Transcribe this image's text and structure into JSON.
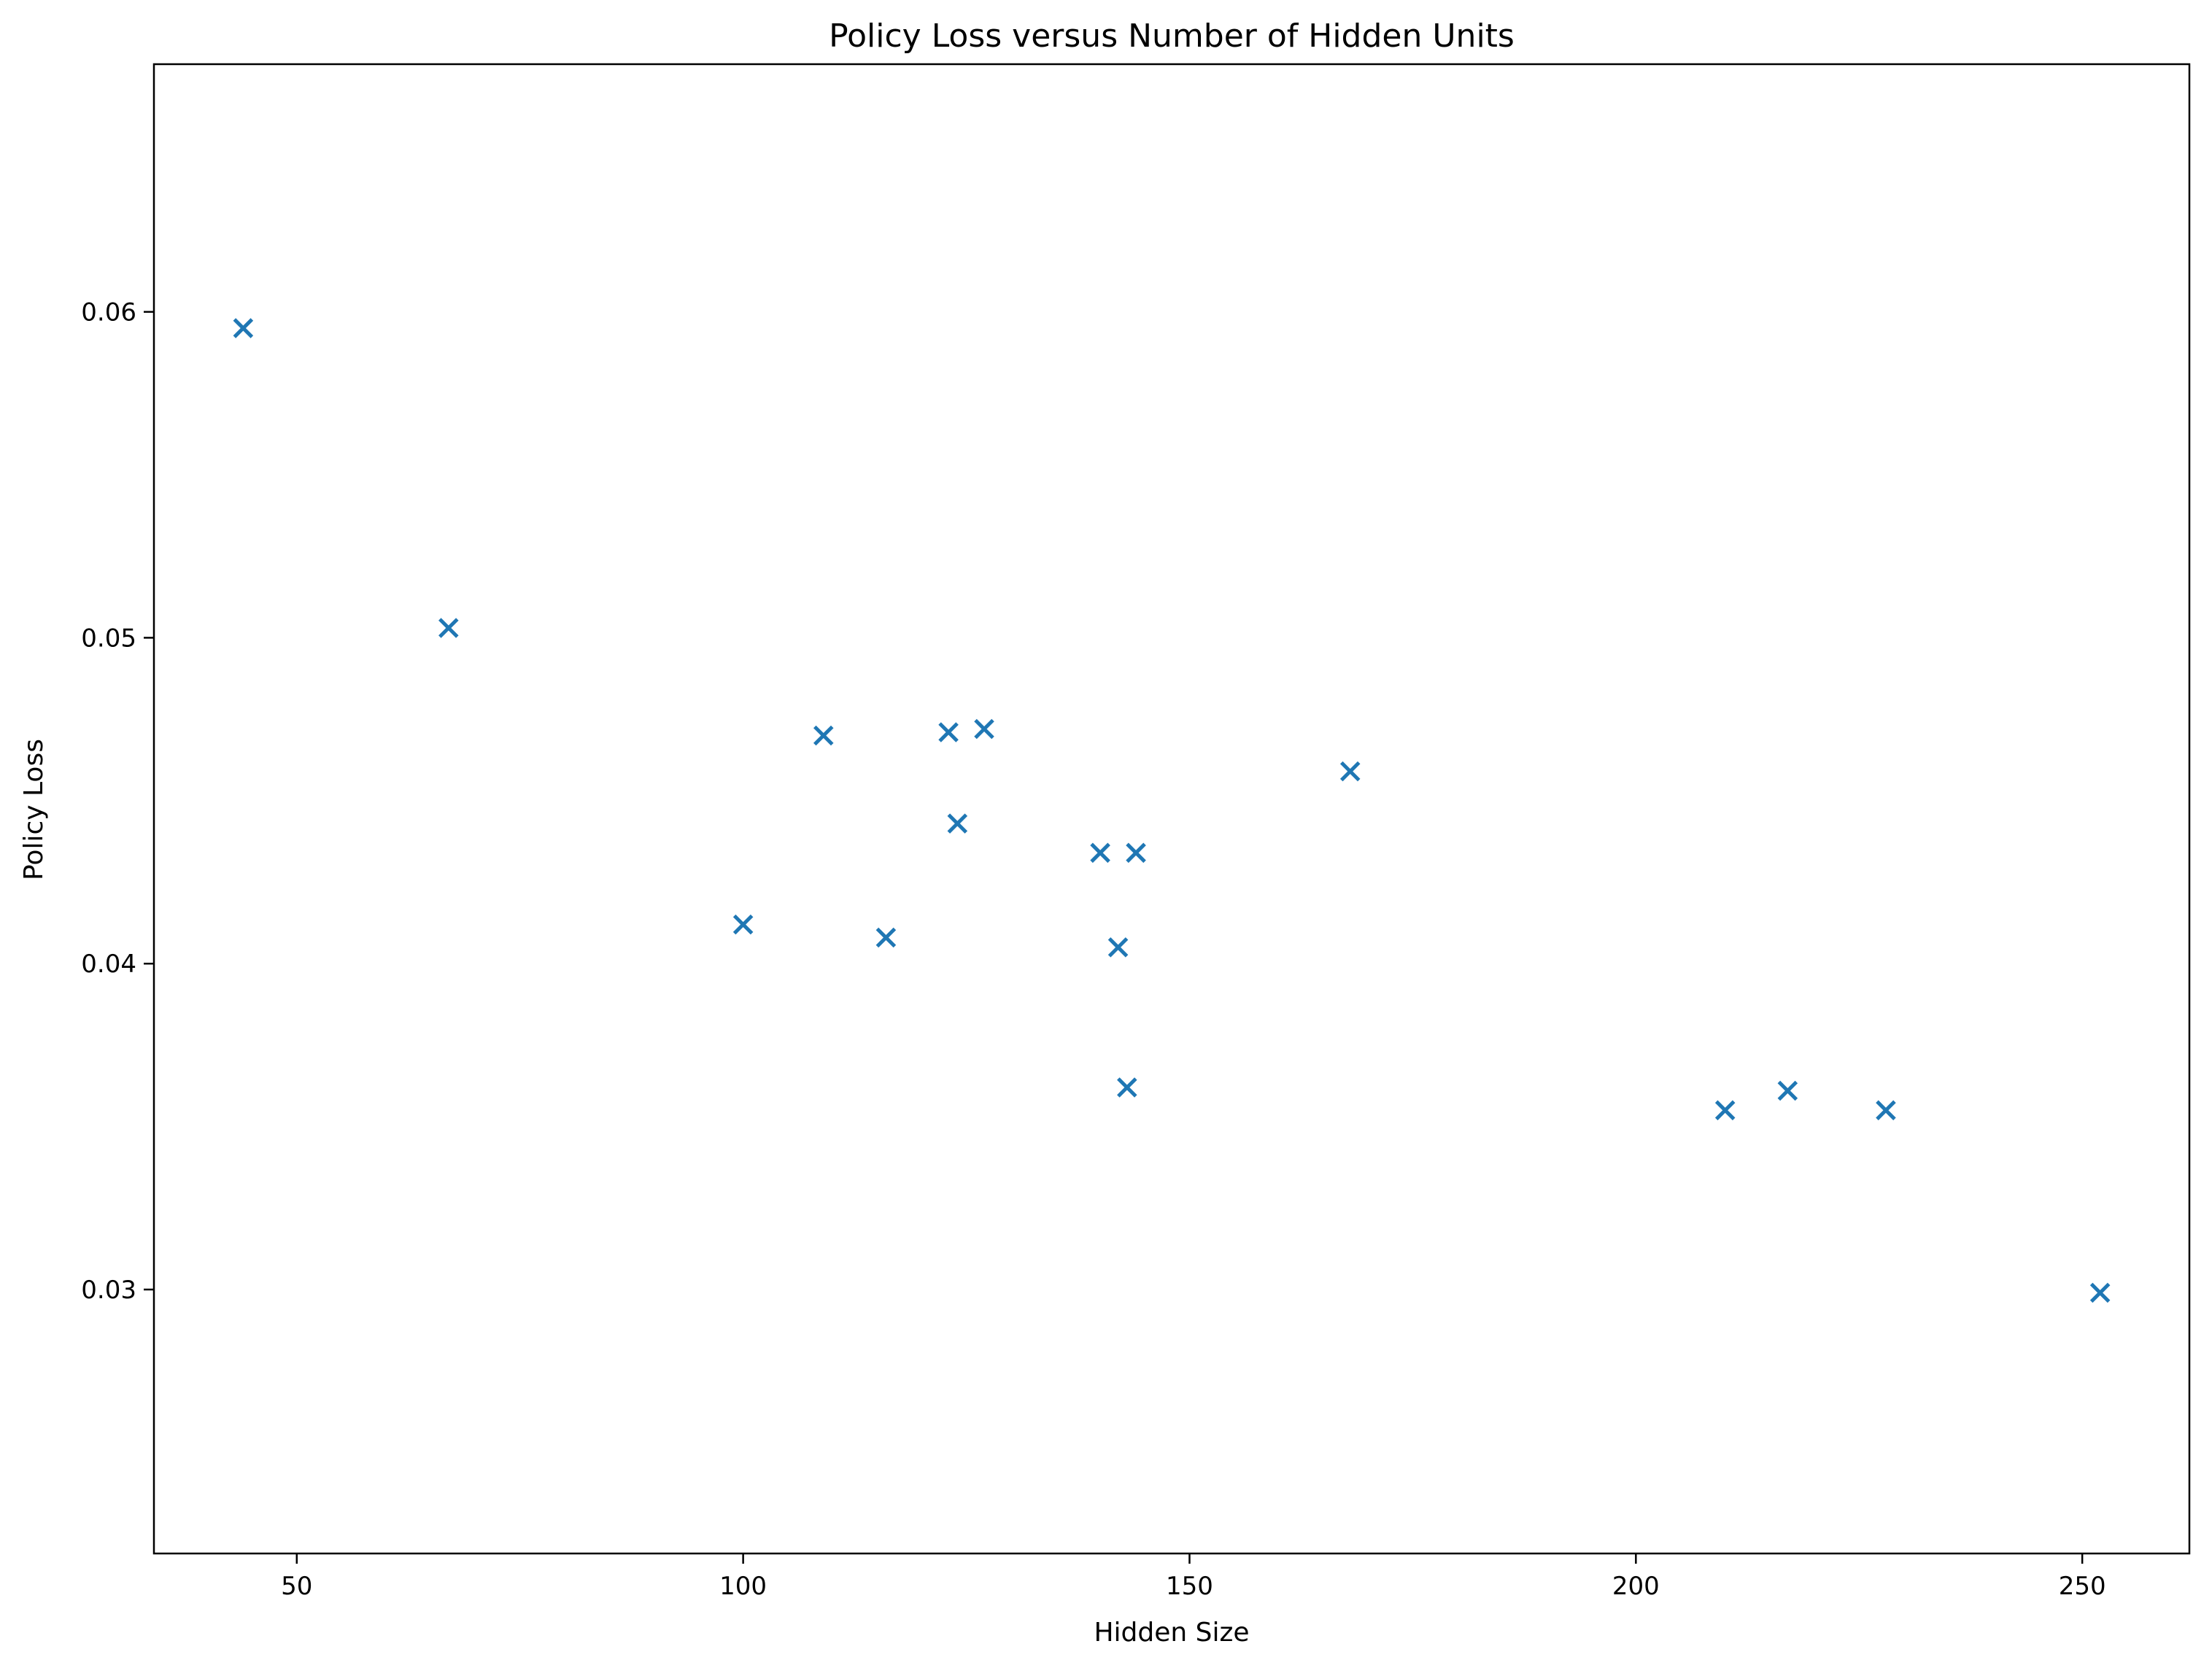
{
  "chart_data": {
    "type": "scatter",
    "title": "Policy Loss versus Number of Hidden Units",
    "xlabel": "Hidden Size",
    "ylabel": "Policy Loss",
    "xlim": [
      34,
      262
    ],
    "ylim": [
      0.0219,
      0.0676
    ],
    "xticks": [
      50,
      100,
      150,
      200,
      250
    ],
    "xtick_labels": [
      "50",
      "100",
      "150",
      "200",
      "250"
    ],
    "yticks": [
      0.03,
      0.04,
      0.05,
      0.06
    ],
    "ytick_labels": [
      "0.03",
      "0.04",
      "0.05",
      "0.06"
    ],
    "marker": "x",
    "color": "#1f77b4",
    "grid": false,
    "points": [
      {
        "x": 44,
        "y": 0.0595
      },
      {
        "x": 67,
        "y": 0.0503
      },
      {
        "x": 100,
        "y": 0.0412
      },
      {
        "x": 109,
        "y": 0.047
      },
      {
        "x": 116,
        "y": 0.0408
      },
      {
        "x": 123,
        "y": 0.0471
      },
      {
        "x": 124,
        "y": 0.0443
      },
      {
        "x": 127,
        "y": 0.0472
      },
      {
        "x": 140,
        "y": 0.0434
      },
      {
        "x": 142,
        "y": 0.0405
      },
      {
        "x": 143,
        "y": 0.0362
      },
      {
        "x": 144,
        "y": 0.0434
      },
      {
        "x": 168,
        "y": 0.0459
      },
      {
        "x": 210,
        "y": 0.0355
      },
      {
        "x": 217,
        "y": 0.0361
      },
      {
        "x": 228,
        "y": 0.0355
      },
      {
        "x": 252,
        "y": 0.0299
      }
    ]
  }
}
